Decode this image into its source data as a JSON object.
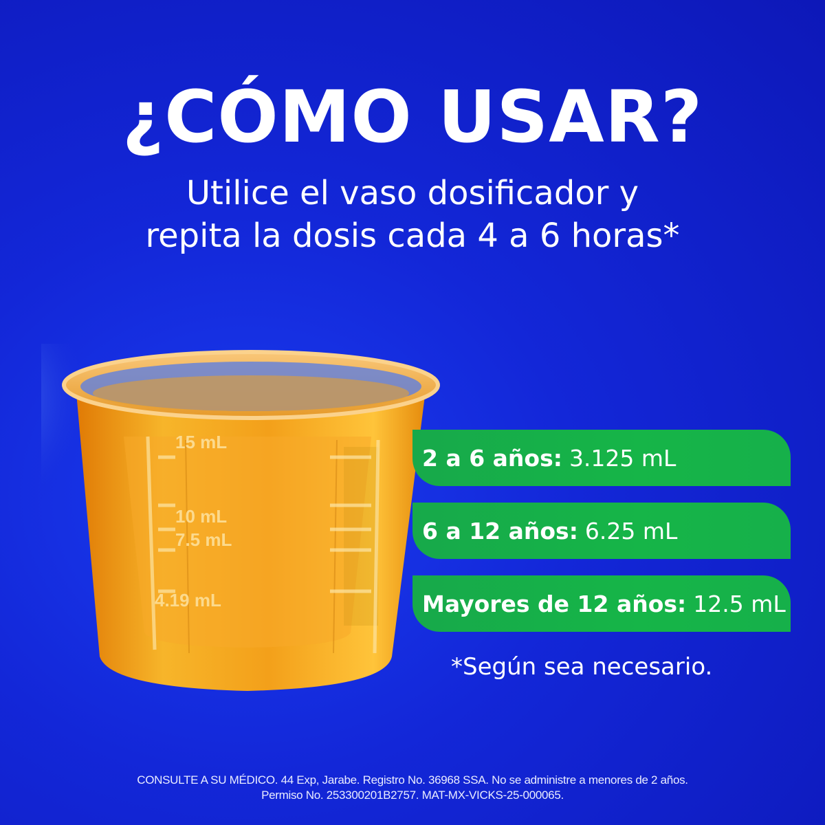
{
  "header": {
    "title": "¿CÓMO USAR?",
    "subtitle_line1": "Utilice el vaso dosificador y",
    "subtitle_line2": "repita la dosis cada 4 a 6 horas*"
  },
  "cup": {
    "markings": [
      "15 mL",
      "10 mL",
      "7.5 mL",
      "4.19 mL"
    ]
  },
  "doses": [
    {
      "label": "2 a 6 años:",
      "value": "3.125 mL"
    },
    {
      "label": "6 a 12 años:",
      "value": "6.25 mL"
    },
    {
      "label": "Mayores de 12 años:",
      "value": "12.5 mL"
    }
  ],
  "note": "*Según sea necesario.",
  "legal": {
    "line1": "CONSULTE A SU MÉDICO. 44 Exp, Jarabe. Registro No. 36968 SSA. No se administre a menores de 2 años.",
    "line2": "Permiso No. 253300201B2757. MAT-MX-VICKS-25-000065."
  },
  "colors": {
    "background": "#1327d8",
    "dose_bar": "#16b548",
    "syrup": "#f0a21a"
  }
}
